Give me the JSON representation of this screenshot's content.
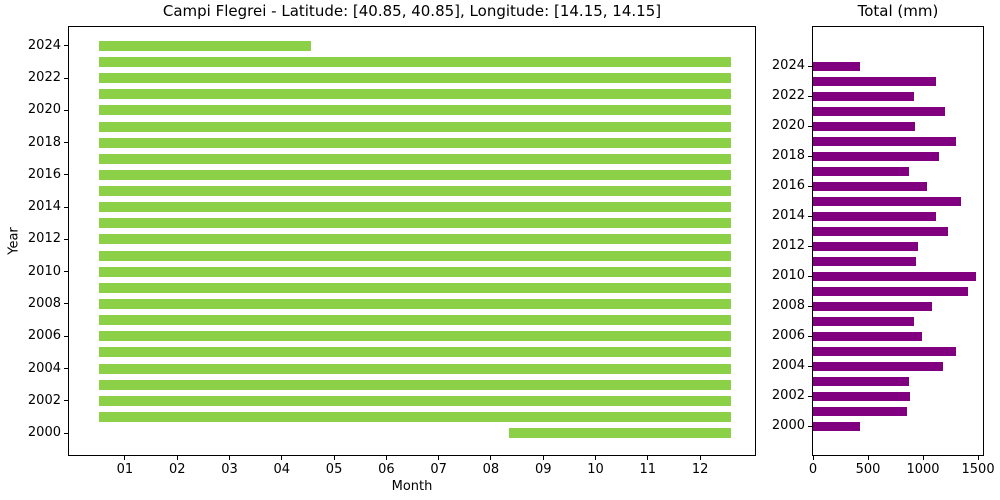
{
  "figure": {
    "background": "#ffffff"
  },
  "chart_data": [
    {
      "type": "bar",
      "orientation": "horizontal",
      "title": "Campi Flegrei - Latitude: [40.85, 40.85], Longitude: [14.15, 14.15]",
      "xlabel": "Month",
      "ylabel": "Year",
      "bar_color": "#8cd047",
      "grid": false,
      "legend": null,
      "xlim": [
        -0.07,
        13.05
      ],
      "ylim": [
        1998.64,
        2025.17
      ],
      "xticks": [
        1,
        2,
        3,
        4,
        5,
        6,
        7,
        8,
        9,
        10,
        11,
        12
      ],
      "xtick_labels": [
        "01",
        "02",
        "03",
        "04",
        "05",
        "06",
        "07",
        "08",
        "09",
        "10",
        "11",
        "12"
      ],
      "yticks": [
        2000,
        2002,
        2004,
        2006,
        2008,
        2010,
        2012,
        2014,
        2016,
        2018,
        2020,
        2022,
        2024
      ],
      "bars": [
        {
          "year": 2000,
          "start": 8.35,
          "end": 12.6
        },
        {
          "year": 2001,
          "start": 0.5,
          "end": 12.6
        },
        {
          "year": 2002,
          "start": 0.5,
          "end": 12.6
        },
        {
          "year": 2003,
          "start": 0.5,
          "end": 12.6
        },
        {
          "year": 2004,
          "start": 0.5,
          "end": 12.6
        },
        {
          "year": 2005,
          "start": 0.5,
          "end": 12.6
        },
        {
          "year": 2006,
          "start": 0.5,
          "end": 12.6
        },
        {
          "year": 2007,
          "start": 0.5,
          "end": 12.6
        },
        {
          "year": 2008,
          "start": 0.5,
          "end": 12.6
        },
        {
          "year": 2009,
          "start": 0.5,
          "end": 12.6
        },
        {
          "year": 2010,
          "start": 0.5,
          "end": 12.6
        },
        {
          "year": 2011,
          "start": 0.5,
          "end": 12.6
        },
        {
          "year": 2012,
          "start": 0.5,
          "end": 12.6
        },
        {
          "year": 2013,
          "start": 0.5,
          "end": 12.6
        },
        {
          "year": 2014,
          "start": 0.5,
          "end": 12.6
        },
        {
          "year": 2015,
          "start": 0.5,
          "end": 12.6
        },
        {
          "year": 2016,
          "start": 0.5,
          "end": 12.6
        },
        {
          "year": 2017,
          "start": 0.5,
          "end": 12.6
        },
        {
          "year": 2018,
          "start": 0.5,
          "end": 12.6
        },
        {
          "year": 2019,
          "start": 0.5,
          "end": 12.6
        },
        {
          "year": 2020,
          "start": 0.5,
          "end": 12.6
        },
        {
          "year": 2021,
          "start": 0.5,
          "end": 12.6
        },
        {
          "year": 2022,
          "start": 0.5,
          "end": 12.6
        },
        {
          "year": 2023,
          "start": 0.5,
          "end": 12.6
        },
        {
          "year": 2024,
          "start": 0.5,
          "end": 4.55
        }
      ]
    },
    {
      "type": "bar",
      "orientation": "horizontal",
      "title": "Total (mm)",
      "xlabel": "",
      "ylabel": "",
      "bar_color": "#800080",
      "grid": false,
      "legend": null,
      "xlim": [
        0,
        1545
      ],
      "ylim": [
        1998.1,
        2026.6
      ],
      "xticks": [
        0,
        500,
        1000,
        1500
      ],
      "xtick_labels": [
        "0",
        "500",
        "1000",
        "1500"
      ],
      "yticks": [
        2000,
        2002,
        2004,
        2006,
        2008,
        2010,
        2012,
        2014,
        2016,
        2018,
        2020,
        2022,
        2024
      ],
      "years": [
        2000,
        2001,
        2002,
        2003,
        2004,
        2005,
        2006,
        2007,
        2008,
        2009,
        2010,
        2011,
        2012,
        2013,
        2014,
        2015,
        2016,
        2017,
        2018,
        2019,
        2020,
        2021,
        2022,
        2023,
        2024
      ],
      "values": [
        425,
        850,
        885,
        875,
        1185,
        1300,
        995,
        920,
        1085,
        1410,
        1480,
        940,
        950,
        1230,
        1120,
        1345,
        1040,
        875,
        1145,
        1300,
        930,
        1200,
        920,
        1120,
        425
      ]
    }
  ]
}
